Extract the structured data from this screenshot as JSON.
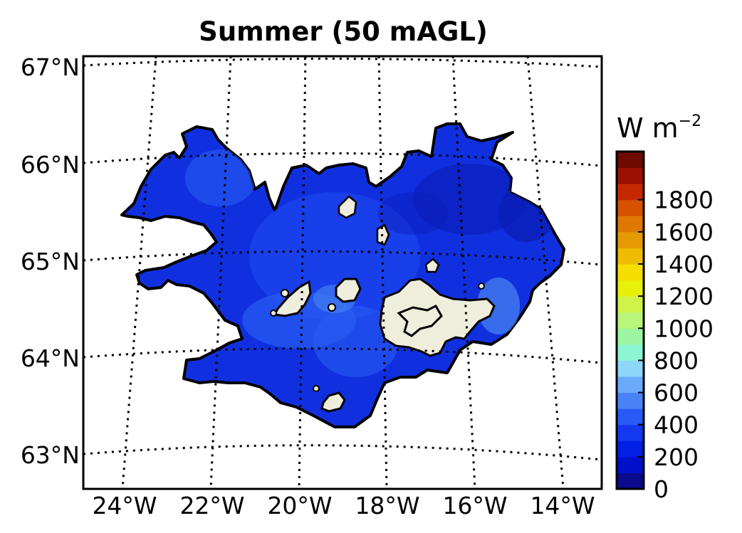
{
  "chart_data": {
    "type": "heatmap",
    "title": "Summer (50 mAGL)",
    "map_region": "Iceland",
    "x_ticks": [
      "24°W",
      "22°W",
      "20°W",
      "18°W",
      "16°W",
      "14°W"
    ],
    "y_ticks": [
      "67°N",
      "66°N",
      "65°N",
      "64°N",
      "63°N"
    ],
    "lon_range": [
      -25,
      -13.5
    ],
    "lat_range": [
      62.7,
      67.1
    ],
    "grid": "dotted",
    "colorbar": {
      "label": "W m",
      "label_exponent": "−2",
      "tick_labels": [
        "0",
        "200",
        "400",
        "600",
        "800",
        "1000",
        "1200",
        "1400",
        "1600",
        "1800"
      ],
      "tick_values": [
        0,
        200,
        400,
        600,
        800,
        1000,
        1200,
        1400,
        1600,
        1800
      ],
      "range": [
        0,
        2000
      ],
      "level_step": 100,
      "colors": [
        "#0a0a8c",
        "#0010c8",
        "#0020e6",
        "#1438f0",
        "#2a5af5",
        "#4a82f7",
        "#6aaafa",
        "#8cd6fa",
        "#8cf5d2",
        "#9cf5a0",
        "#b8f57a",
        "#d0f24a",
        "#e6f00a",
        "#f5de00",
        "#eebc00",
        "#e49a00",
        "#de7800",
        "#d65200",
        "#c42800",
        "#9c1000",
        "#6e0a00"
      ]
    },
    "colors": {
      "land_primary": "#1030e0",
      "land_dark": "#0a1cb4",
      "land_light": "#3264f0",
      "land_lightest": "#4a86f2",
      "glacier": "#efeddc",
      "background": "#ffffff"
    }
  }
}
